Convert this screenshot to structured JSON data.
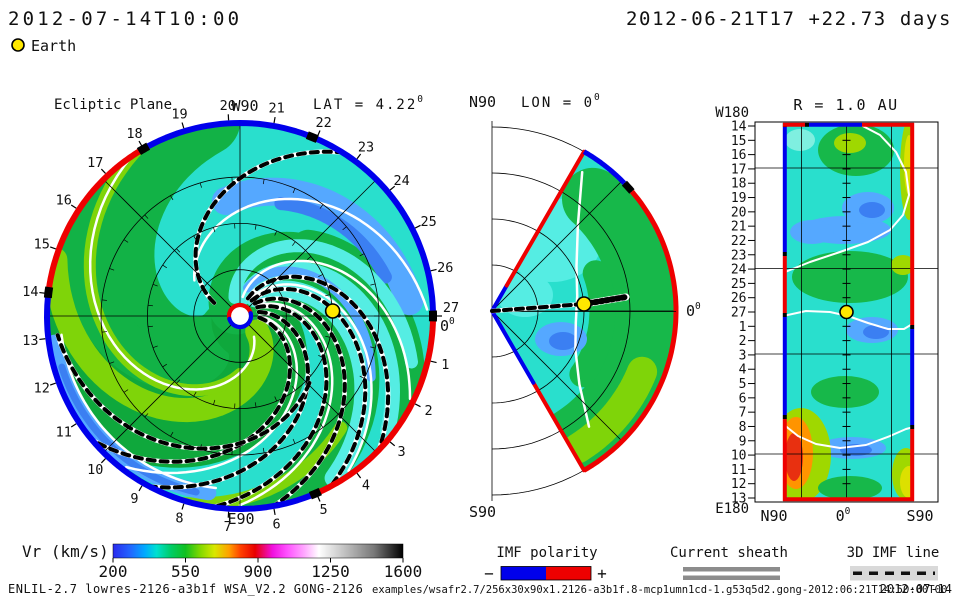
{
  "deg": "0",
  "titles": {
    "current_time": "2012-07-14T10:00",
    "start_offset": "2012-06-21T17 +22.73 days"
  },
  "earth_legend": {
    "label": "Earth"
  },
  "panels": {
    "ecliptic": {
      "title": "Ecliptic Plane",
      "lat_label": "LAT = 4.22",
      "top_label": "W90",
      "bottom_label": "E90",
      "zero_label": "0",
      "day_labels": [
        "1",
        "2",
        "3",
        "4",
        "5",
        "6",
        "7",
        "8",
        "9",
        "10",
        "11",
        "12",
        "13",
        "14",
        "15",
        "16",
        "17",
        "18",
        "19",
        "20",
        "21",
        "22",
        "23",
        "24",
        "25",
        "26",
        "27"
      ]
    },
    "meridional": {
      "top_label": "N90",
      "bottom_label": "S90",
      "lon_label": "LON = 0",
      "zero_label": "0"
    },
    "radial": {
      "title": "R = 1.0 AU",
      "top_left": "W180",
      "bottom_left": "E180",
      "x_labels": [
        "N90",
        "0",
        "S90"
      ],
      "day_labels": [
        "14",
        "15",
        "16",
        "17",
        "18",
        "19",
        "20",
        "21",
        "22",
        "23",
        "24",
        "25",
        "26",
        "27",
        "1",
        "2",
        "3",
        "4",
        "5",
        "6",
        "7",
        "8",
        "9",
        "10",
        "11",
        "12",
        "13"
      ]
    }
  },
  "colorbar": {
    "label": "Vr (km/s)",
    "ticks": [
      "200",
      "550",
      "900",
      "1250",
      "1600"
    ]
  },
  "legends": {
    "imf": {
      "label": "IMF polarity",
      "minus": "−",
      "plus": "+"
    },
    "sheath": {
      "label": "Current sheath"
    },
    "imf_line": {
      "label": "3D IMF line"
    }
  },
  "footer": {
    "run_info": "ENLIL-2.7 lowres-2126-a3b1f WSA_V2.2 GONG-2126",
    "path": "examples/wsafr2.7/256x30x90x1.2126-a3b1f.8-mcp1umn1cd-1.g53q5d2.gong-2012:06:21T14:50:00T00",
    "date": "2012-07-14"
  },
  "colors": {
    "imf_neg": "#0000EB",
    "imf_pos": "#EE0000",
    "earth": "#FFE800",
    "red_label": "#EE0000",
    "turquoise": "#29DFCD",
    "cyan_band": "#55EDE3",
    "green": "#12B246",
    "green2": "#0FA83C",
    "yg": "#7FD409",
    "lblue": "#55A8FF",
    "dblue": "#3B7FF2",
    "sheath": "#FFFFFF",
    "dash": "#000000",
    "map_green": "#17B84A",
    "map_yg": "#9FD800",
    "map_yellow": "#DCE000",
    "map_orange": "#FF9400",
    "map_red": "#E83010",
    "map_lcyan": "#7FEFE0",
    "gray_bar": "#8C8C8C",
    "light_bar": "#D9D9D9"
  },
  "chart_data": {
    "type": "heatmap",
    "variable": "Vr",
    "units": "km/s",
    "title_time": "2012-07-14T10:00",
    "run_start": "2012-06-21T17",
    "elapsed_days": 22.73,
    "colorbar": {
      "min": 200,
      "max": 1600,
      "ticks": [
        200,
        550,
        900,
        1250,
        1600
      ],
      "gradient_anchors": [
        [
          200,
          "#2A2AEE"
        ],
        [
          320,
          "#00AAFF"
        ],
        [
          400,
          "#00E0D0"
        ],
        [
          480,
          "#10C020"
        ],
        [
          620,
          "#B0E000"
        ],
        [
          760,
          "#FF7000"
        ],
        [
          860,
          "#E80000"
        ],
        [
          1000,
          "#FF40FF"
        ],
        [
          1120,
          "#FFD0FF"
        ],
        [
          1200,
          "#FFFFFF"
        ],
        [
          1400,
          "#888888"
        ],
        [
          1600,
          "#000000"
        ]
      ]
    },
    "panels": [
      {
        "id": "ecliptic-plane",
        "projection": "polar",
        "title": "Ecliptic Plane",
        "lat_deg": 4.22,
        "top": "W90",
        "bottom": "E90",
        "r_max_au": 2.1,
        "grid_circles_au": [
          0.5,
          1.0,
          1.5,
          2.0
        ],
        "day_tick_count": 27,
        "earth": {
          "r_au": 1.0,
          "lon_deg": 0
        },
        "boundary_polarity_arcs": [
          {
            "deg_from": 0,
            "deg_to": 120,
            "polarity": "neg"
          },
          {
            "deg_from": 120,
            "deg_to": 173,
            "polarity": "pos"
          },
          {
            "deg_from": 173,
            "deg_to": 293,
            "polarity": "neg"
          },
          {
            "deg_from": 293,
            "deg_to": 360,
            "polarity": "pos"
          }
        ],
        "boundary_marks_deg": [
          0,
          68,
          120,
          173,
          293
        ],
        "speed_range_shown_km_s": [
          300,
          620
        ]
      },
      {
        "id": "meridional-plane",
        "projection": "polar-wedge",
        "lon_deg": 0,
        "lat_extent_deg": [
          -60,
          60
        ],
        "labels": {
          "north": "N90",
          "south": "S90"
        },
        "earth": {
          "r_au": 1.0,
          "lat_deg": 4.22
        }
      },
      {
        "id": "constant-radius-map",
        "projection": "lat-lon",
        "r_au": 1.0,
        "lon_axis": [
          "W180",
          "E180"
        ],
        "lat_axis": [
          "N90",
          "0",
          "S90"
        ],
        "day_rows": [
          14,
          15,
          16,
          17,
          18,
          19,
          20,
          21,
          22,
          23,
          24,
          25,
          26,
          27,
          1,
          2,
          3,
          4,
          5,
          6,
          7,
          8,
          9,
          10,
          11,
          12,
          13
        ],
        "earth": {
          "day": 27,
          "lat_deg": 0
        },
        "features": [
          "slow-wind (300-350 km/s) blue patches near days 19-21, 1-2 and 8",
          "high-speed red/orange stream (700+ km/s) near days 9-12 at high northern latitude",
          "yellow-green fast band along southern edge days 14-20 and bottom corners"
        ]
      }
    ],
    "legend": {
      "imf_polarity": {
        "negative": "blue",
        "positive": "red"
      },
      "current_sheath": "double gray line",
      "imf_line": "black dashed line on gray"
    }
  }
}
